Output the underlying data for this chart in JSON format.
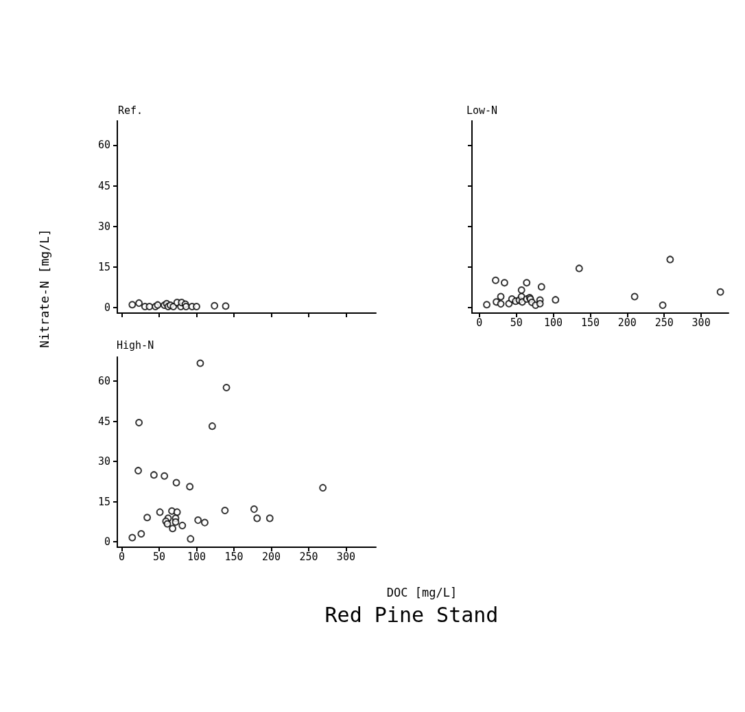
{
  "chart_data": [
    {
      "type": "scatter",
      "title": "Ref.",
      "marker": "circle",
      "color": "#000000",
      "xlim": [
        -6,
        340
      ],
      "ylim": [
        -2,
        69
      ],
      "xticks": [
        0,
        50,
        100,
        150,
        200,
        250,
        300
      ],
      "yticks": [
        0,
        15,
        30,
        45,
        60
      ],
      "tick_labels": "y",
      "x": [
        14,
        23,
        31,
        37,
        45,
        48,
        57,
        60,
        62,
        65,
        69,
        74,
        79,
        80,
        85,
        86,
        94,
        100,
        124,
        139
      ],
      "values": [
        1.1,
        1.7,
        0.4,
        0.4,
        0.4,
        1.0,
        0.9,
        1.5,
        0.4,
        0.9,
        0.4,
        1.9,
        0.4,
        1.9,
        1.3,
        0.4,
        0.4,
        0.4,
        0.7,
        0.6
      ]
    },
    {
      "type": "scatter",
      "title": "Low-N",
      "marker": "circle",
      "color": "#000000",
      "xlim": [
        -10,
        337
      ],
      "ylim": [
        -2,
        69
      ],
      "xticks": [
        0,
        50,
        100,
        150,
        200,
        250,
        300
      ],
      "yticks": [
        0,
        15,
        30,
        45,
        60
      ],
      "tick_labels": "x",
      "x": [
        10,
        22,
        23,
        29,
        29,
        34,
        40,
        44,
        49,
        54,
        57,
        57,
        58,
        64,
        64,
        68,
        69,
        71,
        76,
        82,
        82,
        84,
        103,
        135,
        210,
        248,
        258,
        326
      ],
      "values": [
        1.1,
        10.1,
        2.1,
        4.1,
        1.4,
        9.2,
        1.5,
        3.2,
        2.4,
        2.8,
        6.5,
        4.1,
        2.1,
        9.2,
        3.2,
        3.7,
        3.2,
        2.0,
        0.9,
        2.8,
        1.5,
        7.7,
        2.9,
        14.5,
        4.1,
        0.9,
        17.8,
        5.8
      ]
    },
    {
      "type": "scatter",
      "title": "High-N",
      "xlabel": "DOC [mg/L]",
      "ylabel": "Nitrate-N [mg/L]",
      "annotations": [
        "Red Pine Stand"
      ],
      "marker": "circle",
      "color": "#000000",
      "xlim": [
        -6,
        340
      ],
      "ylim": [
        -2,
        69
      ],
      "xticks": [
        0,
        50,
        100,
        150,
        200,
        250,
        300
      ],
      "yticks": [
        0,
        15,
        30,
        45,
        60
      ],
      "x": [
        105,
        140,
        23,
        121,
        22,
        43,
        57,
        73,
        91,
        269,
        51,
        67,
        74,
        138,
        177,
        34,
        62,
        59,
        61,
        72,
        72,
        68,
        81,
        102,
        111,
        181,
        198,
        92,
        14,
        26
      ],
      "values": [
        66.7,
        57.6,
        44.5,
        43.2,
        26.6,
        25.0,
        24.6,
        22.1,
        20.6,
        20.2,
        11.1,
        11.5,
        11.1,
        11.7,
        12.2,
        9.1,
        8.8,
        7.7,
        6.7,
        8.8,
        7.4,
        5.0,
        6.1,
        8.1,
        7.2,
        8.8,
        8.8,
        1.1,
        1.6,
        3.0
      ]
    }
  ]
}
